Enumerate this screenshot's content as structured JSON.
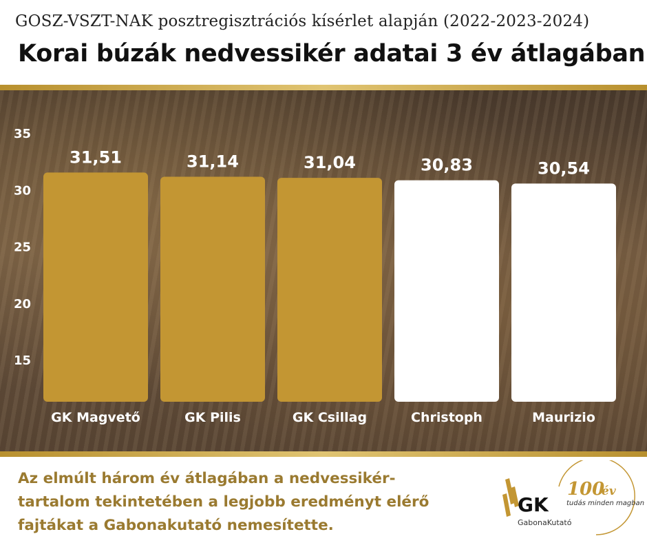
{
  "header": {
    "subtitle": "GOSZ-VSZT-NAK  posztregisztrációs kísérlet alapján (2022-2023-2024)",
    "title": "Korai búzák nedvessikér adatai 3 év átlagában"
  },
  "chart_data": {
    "type": "bar",
    "categories": [
      "GK Magvető",
      "GK Pilis",
      "GK Csillag",
      "Christoph",
      "Maurizio"
    ],
    "values": [
      31.51,
      31.14,
      31.04,
      30.83,
      30.54
    ],
    "value_labels": [
      "31,51",
      "31,14",
      "31,04",
      "30,83",
      "30,54"
    ],
    "yticks": [
      15,
      20,
      25,
      30,
      35
    ],
    "ylim": [
      11.3,
      35
    ],
    "bar_colors": [
      "#c39633",
      "#c39633",
      "#c39633",
      "#ffffff",
      "#ffffff"
    ],
    "grid": false,
    "legend": "none"
  },
  "footer": {
    "lines": [
      "Az elmúlt három év átlagában a nedvessikér-",
      "tartalom tekintetében a legjobb eredményt elérő",
      "fajtákat a Gabonakutató nemesítette."
    ]
  },
  "logo": {
    "brand": "GK",
    "name": "GabonaKutató",
    "anniversary_num": "100",
    "anniversary_unit": "év",
    "slogan": "tudás minden magban"
  },
  "colors": {
    "gold": "#c39633",
    "footer_text": "#9a7a30"
  }
}
